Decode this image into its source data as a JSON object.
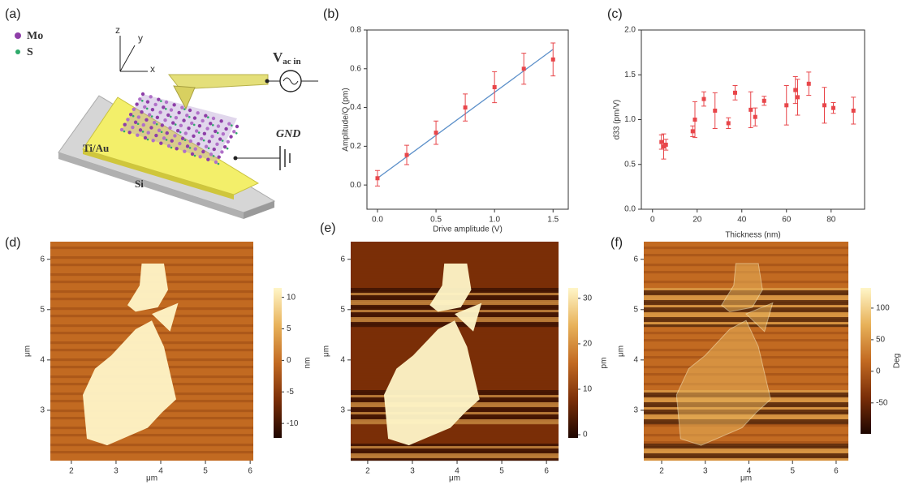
{
  "panel_labels": [
    "(a)",
    "(b)",
    "(c)",
    "(d)",
    "(e)",
    "(f)"
  ],
  "diagram": {
    "mo": "Mo",
    "s": "S",
    "z": "z",
    "y": "y",
    "x": "x",
    "v": "V",
    "v_sub": "ac in",
    "gnd": "GND",
    "tiau": "Ti/Au",
    "si": "Si"
  },
  "chart_data": [
    {
      "type": "scatter",
      "xlabel": "Drive amplitude (V)",
      "ylabel": "Amplitude/Q (pm)",
      "x": [
        0,
        0.25,
        0.5,
        0.75,
        1.0,
        1.25,
        1.5
      ],
      "series": [
        {
          "color": "#e8464a",
          "values": [
            0.035,
            0.155,
            0.27,
            0.4,
            0.505,
            0.6,
            0.648
          ],
          "errors": [
            0.04,
            0.05,
            0.06,
            0.07,
            0.08,
            0.08,
            0.085
          ]
        }
      ],
      "fit": {
        "x": [
          0,
          1.5
        ],
        "values": [
          0.035,
          0.7
        ],
        "color": "#5b8fc9"
      },
      "xlim": [
        -0.09,
        1.63
      ],
      "ylim": [
        -0.125,
        0.8
      ],
      "xticks": [
        {
          "value": 0,
          "label": "0.0"
        },
        {
          "value": 0.5,
          "label": "0.5"
        },
        {
          "value": 1,
          "label": "1.0"
        },
        {
          "value": 1.5,
          "label": "1.5"
        }
      ],
      "yticks": [
        {
          "value": 0,
          "label": "0.0"
        },
        0.2,
        0.4,
        0.6,
        0.8
      ]
    },
    {
      "type": "scatter",
      "xlabel": "Thickness (nm)",
      "ylabel": "d33 (pm/V)",
      "x": [
        4,
        5,
        6,
        18,
        19,
        23,
        28,
        34,
        37,
        44,
        46,
        50,
        60,
        64,
        65,
        70,
        77,
        81,
        90
      ],
      "series": [
        {
          "color": "#e8464a",
          "values": [
            0.75,
            0.7,
            0.72,
            0.87,
            1.0,
            1.23,
            1.1,
            0.96,
            1.3,
            1.11,
            1.03,
            1.21,
            1.16,
            1.33,
            1.25,
            1.4,
            1.16,
            1.13,
            1.1
          ],
          "errors": [
            0.08,
            0.14,
            0.06,
            0.06,
            0.2,
            0.08,
            0.2,
            0.06,
            0.08,
            0.2,
            0.1,
            0.05,
            0.22,
            0.15,
            0.2,
            0.13,
            0.2,
            0.06,
            0.15
          ]
        }
      ],
      "xlim": [
        -5,
        95
      ],
      "ylim": [
        0,
        2
      ],
      "xticks": [
        0,
        20,
        40,
        60,
        80
      ],
      "yticks": [
        {
          "value": 0,
          "label": "0.0"
        },
        0.5,
        {
          "value": 1,
          "label": "1.0"
        },
        1.5,
        {
          "value": 2,
          "label": "2.0"
        }
      ]
    },
    {
      "type": "image",
      "xlabel": "μm",
      "ylabel": "μm",
      "xlim": [
        1.53,
        6.07
      ],
      "ylim": [
        2.0,
        6.35
      ],
      "xticks": [
        2,
        3,
        4,
        5,
        6
      ],
      "yticks": [
        3,
        4,
        5,
        6
      ],
      "colorbar": {
        "clim": [
          -12.3,
          11.5
        ],
        "ticks": [
          -10,
          -5,
          0,
          5,
          10
        ],
        "label": "nm",
        "colormap": [
          "#1e0600",
          "#7a2e08",
          "#c26a22",
          "#e8b25a",
          "#fff6c8"
        ]
      }
    },
    {
      "type": "image",
      "xlabel": "μm",
      "ylabel": "μm",
      "xlim": [
        1.62,
        6.27
      ],
      "ylim": [
        2.0,
        6.35
      ],
      "xticks": [
        2,
        3,
        4,
        5,
        6
      ],
      "yticks": [
        3,
        4,
        5,
        6
      ],
      "colorbar": {
        "clim": [
          -0.7,
          32.3
        ],
        "ticks": [
          0,
          10,
          20,
          30
        ],
        "label": "pm",
        "colormap": [
          "#1e0600",
          "#7a2e08",
          "#c26a22",
          "#e8b25a",
          "#fff6c8"
        ]
      }
    },
    {
      "type": "image",
      "xlabel": "μm",
      "ylabel": "μm",
      "xlim": [
        1.59,
        6.28
      ],
      "ylim": [
        2.0,
        6.35
      ],
      "xticks": [
        2,
        3,
        4,
        5,
        6
      ],
      "yticks": [
        3,
        4,
        5,
        6
      ],
      "colorbar": {
        "clim": [
          -99,
          132
        ],
        "ticks": [
          -50,
          0,
          50,
          100
        ],
        "label": "Deg",
        "colormap": [
          "#1e0600",
          "#7a2e08",
          "#c26a22",
          "#e8b25a",
          "#fff6c8"
        ]
      }
    }
  ]
}
